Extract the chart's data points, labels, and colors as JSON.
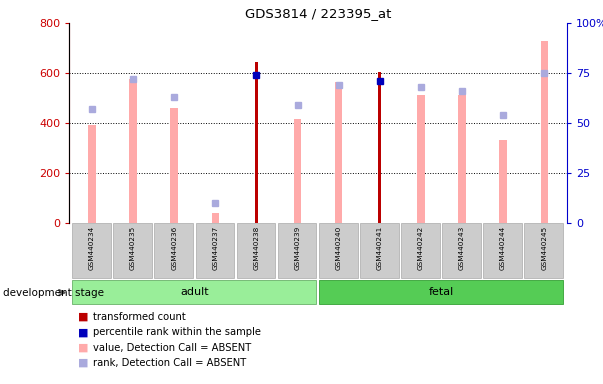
{
  "title": "GDS3814 / 223395_at",
  "samples": [
    "GSM440234",
    "GSM440235",
    "GSM440236",
    "GSM440237",
    "GSM440238",
    "GSM440239",
    "GSM440240",
    "GSM440241",
    "GSM440242",
    "GSM440243",
    "GSM440244",
    "GSM440245"
  ],
  "value_absent": [
    390,
    575,
    460,
    40,
    0,
    415,
    565,
    0,
    510,
    510,
    330,
    730
  ],
  "rank_absent_pct": [
    57,
    72,
    63,
    10,
    0,
    59,
    69,
    0,
    68,
    66,
    54,
    75
  ],
  "transformed_count": [
    0,
    0,
    0,
    0,
    645,
    0,
    0,
    605,
    0,
    0,
    0,
    0
  ],
  "percentile_rank_pct": [
    0,
    0,
    0,
    0,
    74,
    0,
    0,
    71,
    0,
    0,
    0,
    0
  ],
  "left_ylim": [
    0,
    800
  ],
  "right_ylim": [
    0,
    100
  ],
  "left_yticks": [
    0,
    200,
    400,
    600,
    800
  ],
  "right_yticks": [
    0,
    25,
    50,
    75,
    100
  ],
  "right_yticklabels": [
    "0",
    "25",
    "50",
    "75",
    "100%"
  ],
  "adult_color": "#99ee99",
  "fetal_color": "#55cc55",
  "bar_value_color": "#ffaaaa",
  "bar_rank_color": "#aaaadd",
  "bar_tc_color": "#bb0000",
  "bar_pr_color": "#0000bb",
  "left_axis_color": "#cc0000",
  "right_axis_color": "#0000cc",
  "development_stage_label": "development stage",
  "legend_labels": [
    "transformed count",
    "percentile rank within the sample",
    "value, Detection Call = ABSENT",
    "rank, Detection Call = ABSENT"
  ],
  "legend_colors": [
    "#bb0000",
    "#0000bb",
    "#ffaaaa",
    "#aaaadd"
  ]
}
